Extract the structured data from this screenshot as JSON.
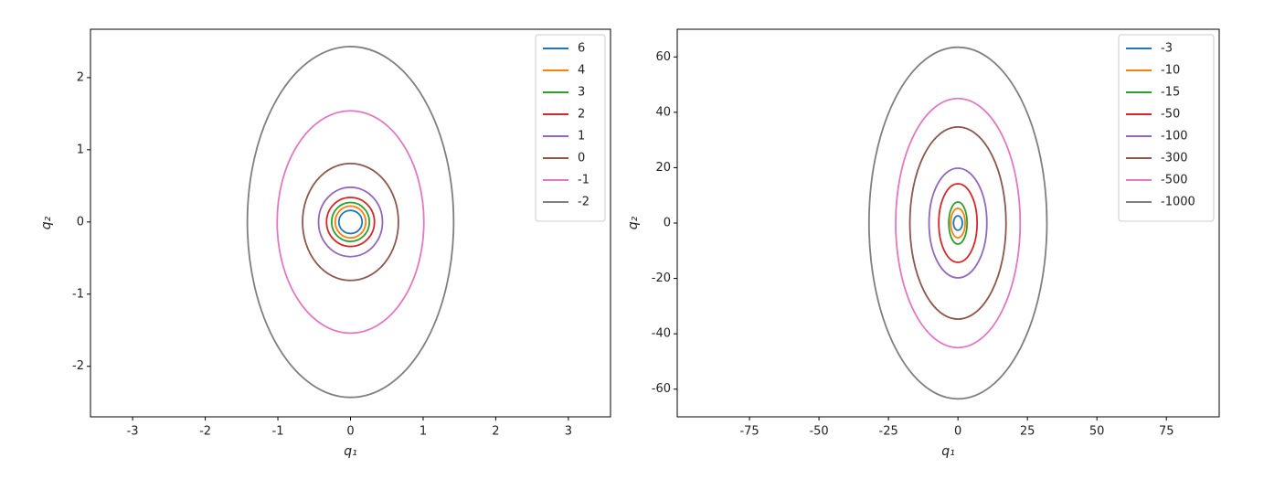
{
  "chart_data": [
    {
      "type": "ellipse",
      "xlabel": "q₁",
      "ylabel": "q₂",
      "xlim": [
        -3.58,
        3.58
      ],
      "ylim": [
        -2.7,
        2.67
      ],
      "xticks": [
        -3,
        -2,
        -1,
        0,
        1,
        2,
        3
      ],
      "yticks": [
        -2,
        -1,
        0,
        1,
        2
      ],
      "legend": "upper right",
      "series": [
        {
          "name": "6",
          "color": "#1f77b4",
          "rx": 0.16,
          "ry": 0.16
        },
        {
          "name": "4",
          "color": "#ff7f0e",
          "rx": 0.21,
          "ry": 0.22
        },
        {
          "name": "3",
          "color": "#2ca02c",
          "rx": 0.26,
          "ry": 0.27
        },
        {
          "name": "2",
          "color": "#d62728",
          "rx": 0.33,
          "ry": 0.34
        },
        {
          "name": "1",
          "color": "#9467bd",
          "rx": 0.44,
          "ry": 0.48
        },
        {
          "name": "0",
          "color": "#8c564b",
          "rx": 0.66,
          "ry": 0.81
        },
        {
          "name": "-1",
          "color": "#e377c2",
          "rx": 1.01,
          "ry": 1.54
        },
        {
          "name": "-2",
          "color": "#7f7f7f",
          "rx": 1.42,
          "ry": 2.43
        }
      ]
    },
    {
      "type": "ellipse",
      "xlabel": "q₁",
      "ylabel": "q₂",
      "xlim": [
        -101,
        94
      ],
      "ylim": [
        -70,
        70
      ],
      "xticks": [
        -75,
        -50,
        -25,
        0,
        25,
        50,
        75
      ],
      "yticks": [
        -60,
        -40,
        -20,
        0,
        20,
        40,
        60
      ],
      "legend": "upper right",
      "series": [
        {
          "name": "-3",
          "color": "#1f77b4",
          "rx": 1.6,
          "ry": 2.6
        },
        {
          "name": "-10",
          "color": "#ff7f0e",
          "rx": 2.6,
          "ry": 5.3
        },
        {
          "name": "-15",
          "color": "#2ca02c",
          "rx": 3.3,
          "ry": 7.6
        },
        {
          "name": "-50",
          "color": "#d62728",
          "rx": 6.9,
          "ry": 14.2
        },
        {
          "name": "-100",
          "color": "#9467bd",
          "rx": 10.4,
          "ry": 19.8
        },
        {
          "name": "-300",
          "color": "#8c564b",
          "rx": 17.3,
          "ry": 34.7
        },
        {
          "name": "-500",
          "color": "#e377c2",
          "rx": 22.4,
          "ry": 45
        },
        {
          "name": "-1000",
          "color": "#7f7f7f",
          "rx": 32,
          "ry": 63.5
        }
      ]
    }
  ]
}
